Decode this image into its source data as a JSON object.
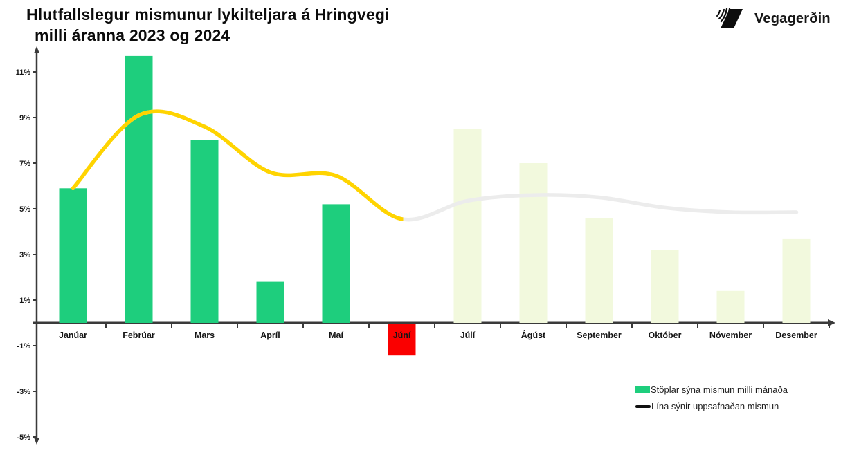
{
  "header": {
    "title_line1": "Hlutfallslegur mismunur lykilteljara á Hringvegi",
    "title_line2": "milli áranna 2023 og 2024",
    "logo_text": "Vegagerðin"
  },
  "legend": {
    "bars_label": "Stöplar sýna mismun milli mánaða",
    "line_label": "Lína sýnir uppsafnaðan mismun"
  },
  "colors": {
    "bar_positive": "#1ece7d",
    "bar_negative": "#fa0000",
    "bar_faded": "#f2f9dd",
    "line_solid": "#ffd400",
    "line_faded": "#ececec",
    "axis": "#3a3a3a",
    "tick_text": "#161616",
    "legend_line": "#111111"
  },
  "chart_data": {
    "type": "bar",
    "title": "Hlutfallslegur mismunur lykilteljara á Hringvegi milli áranna 2023 og 2024",
    "categories": [
      "Janúar",
      "Febrúar",
      "Mars",
      "Apríl",
      "Maí",
      "Júní",
      "Júlí",
      "Ágúst",
      "September",
      "Október",
      "Nóvember",
      "Desember"
    ],
    "series": [
      {
        "name": "Stöplar sýna mismun milli mánaða",
        "type": "bar",
        "values": [
          5.9,
          11.7,
          8.0,
          1.8,
          5.2,
          -1.4,
          8.5,
          7.0,
          4.6,
          3.2,
          1.4,
          3.7
        ],
        "styles": [
          "solid",
          "solid",
          "solid",
          "solid",
          "solid",
          "negative",
          "faded",
          "faded",
          "faded",
          "faded",
          "faded",
          "faded"
        ]
      },
      {
        "name": "Lína sýnir uppsafnaðan mismun",
        "type": "line",
        "values": [
          5.9,
          9.1,
          8.6,
          6.6,
          6.45,
          4.55,
          5.35,
          5.6,
          5.5,
          5.05,
          4.85,
          4.85
        ],
        "solid_through_index": 5
      }
    ],
    "xlabel": "",
    "ylabel": "",
    "ylim": [
      -5,
      12
    ],
    "yticks": [
      11,
      9,
      7,
      5,
      3,
      1,
      -1,
      -3,
      -5
    ],
    "ytick_suffix": "%",
    "grid": false,
    "legend_position": "bottom-right"
  }
}
